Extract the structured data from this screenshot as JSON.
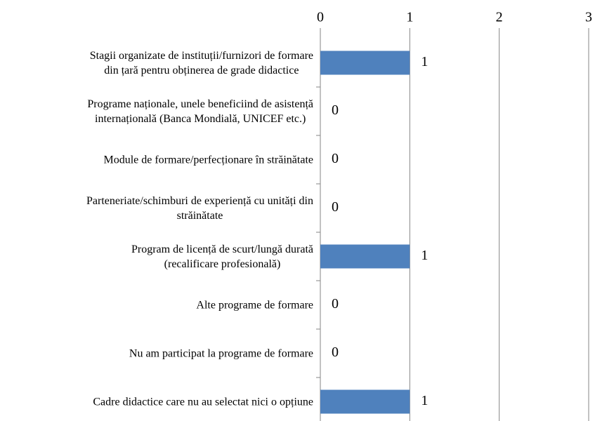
{
  "chart_data": {
    "type": "barh",
    "categories": [
      "Stagii organizate de instituții/furnizori de formare\ndin țară pentru obținerea de grade didactice",
      "Programe naționale, unele beneficiind de asistență\ninternațională (Banca Mondială, UNICEF etc.)",
      "Module de formare/perfecționare în străinătate",
      "Parteneriate/schimburi de experiență cu unități din\nstrăinătate",
      "Program de licență de scurt/lungă durată\n(recalificare profesională)",
      "Alte programe de formare",
      "Nu am participat la programe de formare",
      "Cadre didactice care nu au selectat nici o opțiune"
    ],
    "values": [
      1,
      0,
      0,
      0,
      1,
      0,
      0,
      1
    ],
    "color": "#4f81bd",
    "xlim": [
      0,
      3
    ],
    "xticks": [
      0,
      1,
      2,
      3
    ],
    "grid": true
  }
}
